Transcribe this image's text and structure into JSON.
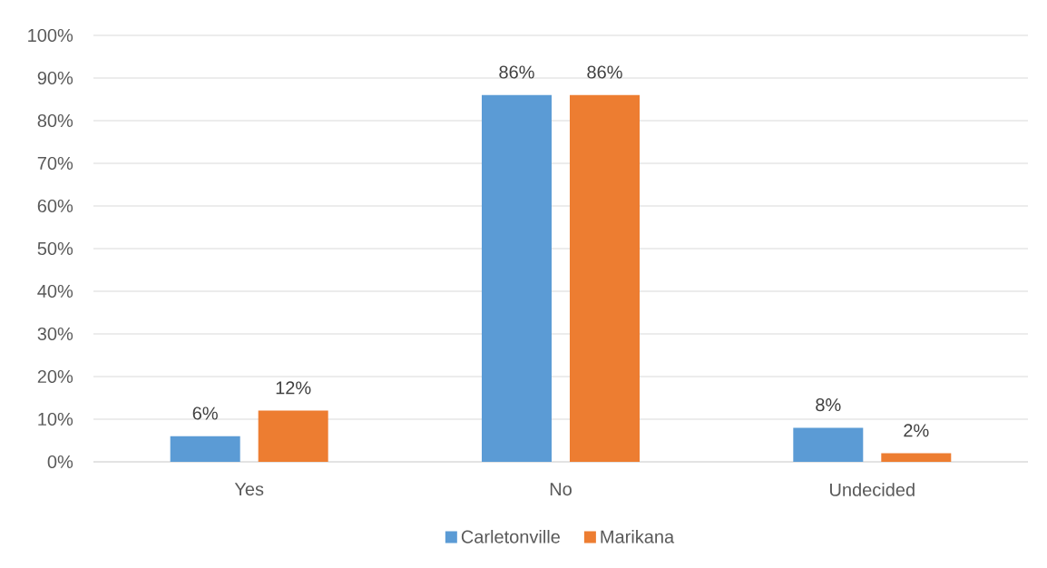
{
  "chart_data": {
    "type": "bar",
    "categories": [
      "Yes",
      "No",
      "Undecided"
    ],
    "series": [
      {
        "name": "Carletonville",
        "color": "#5b9bd5",
        "values": [
          6,
          86,
          8
        ],
        "value_labels": [
          "6%",
          "86%",
          "8%"
        ]
      },
      {
        "name": "Marikana",
        "color": "#ed7d31",
        "values": [
          12,
          86,
          2
        ],
        "value_labels": [
          "12%",
          "86%",
          "2%"
        ]
      }
    ],
    "ylim": [
      0,
      100
    ],
    "yticks": [
      {
        "value": 0,
        "label": "0%"
      },
      {
        "value": 10,
        "label": "10%"
      },
      {
        "value": 20,
        "label": "20%"
      },
      {
        "value": 30,
        "label": "30%"
      },
      {
        "value": 40,
        "label": "40%"
      },
      {
        "value": 50,
        "label": "50%"
      },
      {
        "value": 60,
        "label": "60%"
      },
      {
        "value": 70,
        "label": "70%"
      },
      {
        "value": 80,
        "label": "80%"
      },
      {
        "value": 90,
        "label": "90%"
      },
      {
        "value": 100,
        "label": "100%"
      }
    ],
    "grid": "y",
    "legend": "bottom"
  }
}
